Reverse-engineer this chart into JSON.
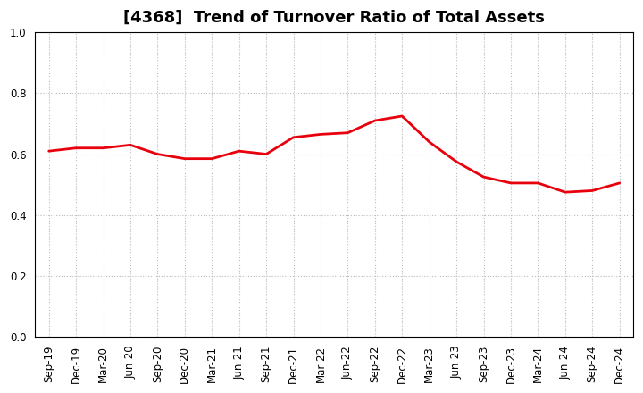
{
  "title": "[4368]  Trend of Turnover Ratio of Total Assets",
  "x_labels": [
    "Sep-19",
    "Dec-19",
    "Mar-20",
    "Jun-20",
    "Sep-20",
    "Dec-20",
    "Mar-21",
    "Jun-21",
    "Sep-21",
    "Dec-21",
    "Mar-22",
    "Jun-22",
    "Sep-22",
    "Dec-22",
    "Mar-23",
    "Jun-23",
    "Sep-23",
    "Dec-23",
    "Mar-24",
    "Jun-24",
    "Sep-24",
    "Dec-24"
  ],
  "y_values": [
    0.61,
    0.62,
    0.62,
    0.63,
    0.6,
    0.585,
    0.585,
    0.61,
    0.6,
    0.655,
    0.665,
    0.67,
    0.71,
    0.725,
    0.64,
    0.575,
    0.525,
    0.505,
    0.505,
    0.475,
    0.48,
    0.505
  ],
  "ylim": [
    0.0,
    1.0
  ],
  "yticks": [
    0.0,
    0.2,
    0.4,
    0.6,
    0.8,
    1.0
  ],
  "line_color": "#e8000d",
  "line_width": 2.0,
  "title_fontsize": 13,
  "tick_fontsize": 8.5,
  "grid_color": "#bbbbbb",
  "background_color": "#ffffff",
  "plot_bg_color": "#ffffff",
  "spine_color": "#000000"
}
